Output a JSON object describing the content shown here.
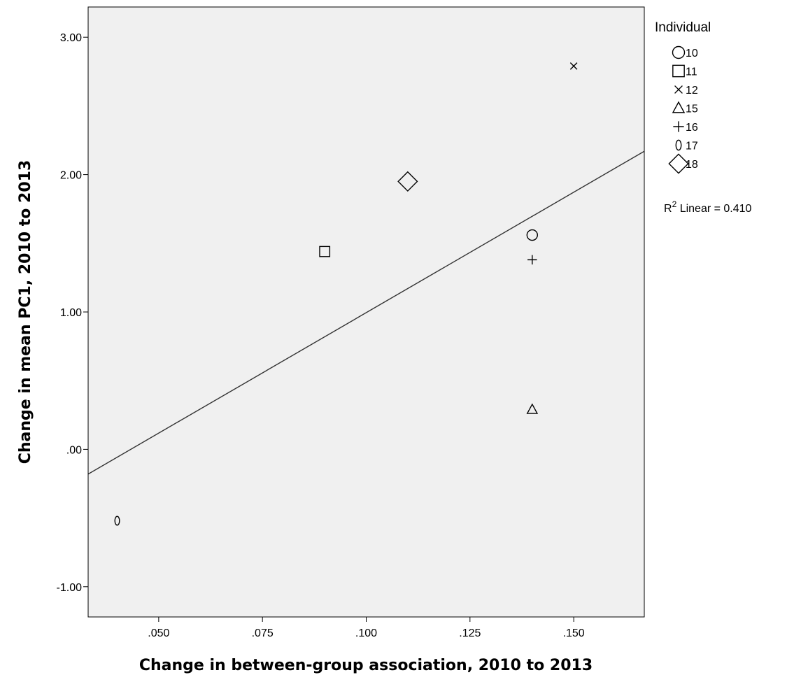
{
  "chart_data": {
    "type": "scatter",
    "title": "",
    "xlabel": "Change in between-group association, 2010 to 2013",
    "ylabel": "Change in mean PC1, 2010 to 2013",
    "xlim": [
      0.033,
      0.167
    ],
    "ylim": [
      -1.22,
      3.22
    ],
    "x_ticks": [
      0.05,
      0.075,
      0.1,
      0.125,
      0.15
    ],
    "x_tick_labels": [
      ".050",
      ".075",
      ".100",
      ".125",
      ".150"
    ],
    "y_ticks": [
      -1,
      0,
      1,
      2,
      3
    ],
    "y_tick_labels": [
      "-1.00",
      ".00",
      "1.00",
      "2.00",
      "3.00"
    ],
    "grid": false,
    "legend_title": "Individual",
    "legend_position": "right",
    "series": [
      {
        "name": "10",
        "marker": "circle",
        "points": [
          {
            "x": 0.14,
            "y": 1.56
          }
        ]
      },
      {
        "name": "11",
        "marker": "square",
        "points": [
          {
            "x": 0.09,
            "y": 1.44
          }
        ]
      },
      {
        "name": "12",
        "marker": "x",
        "points": [
          {
            "x": 0.15,
            "y": 2.79
          }
        ]
      },
      {
        "name": "15",
        "marker": "triangle",
        "points": [
          {
            "x": 0.14,
            "y": 0.29
          }
        ]
      },
      {
        "name": "16",
        "marker": "plus",
        "points": [
          {
            "x": 0.14,
            "y": 1.38
          }
        ]
      },
      {
        "name": "17",
        "marker": "zero",
        "points": [
          {
            "x": 0.04,
            "y": -0.52
          }
        ]
      },
      {
        "name": "18",
        "marker": "diamond",
        "points": [
          {
            "x": 0.11,
            "y": 1.95
          }
        ]
      }
    ],
    "fit_line": {
      "type": "linear",
      "label": "R² Linear = 0.410",
      "x": [
        0.033,
        0.167
      ],
      "y": [
        -0.18,
        2.17
      ]
    },
    "colors": {
      "plot_background": "#f0f0f0",
      "frame": "#000000",
      "marker": "#000000",
      "line": "#333333"
    }
  }
}
